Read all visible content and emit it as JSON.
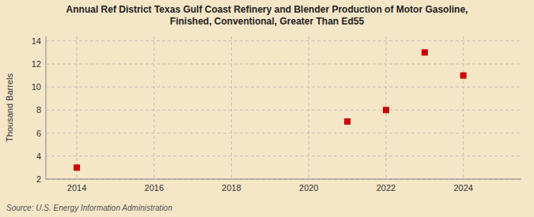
{
  "chart_data": {
    "type": "scatter",
    "title": "Annual Ref District Texas Gulf Coast Refinery and Blender Production of Motor Gasoline,\nFinished, Conventional, Greater Than Ed55",
    "ylabel": "Thousand Barrels",
    "source": "Source: U.S. Energy Information Administration",
    "x": [
      2014,
      2021,
      2022,
      2023,
      2024
    ],
    "values": [
      3,
      7,
      8,
      13,
      11
    ],
    "color": "#cc0000",
    "marker": "square",
    "xlim": [
      2013.2,
      2025.5
    ],
    "ylim": [
      2,
      14.4
    ],
    "xticks": [
      2014,
      2016,
      2018,
      2020,
      2022,
      2024
    ],
    "yticks": [
      2,
      4,
      6,
      8,
      10,
      12,
      14
    ],
    "grid": true
  }
}
